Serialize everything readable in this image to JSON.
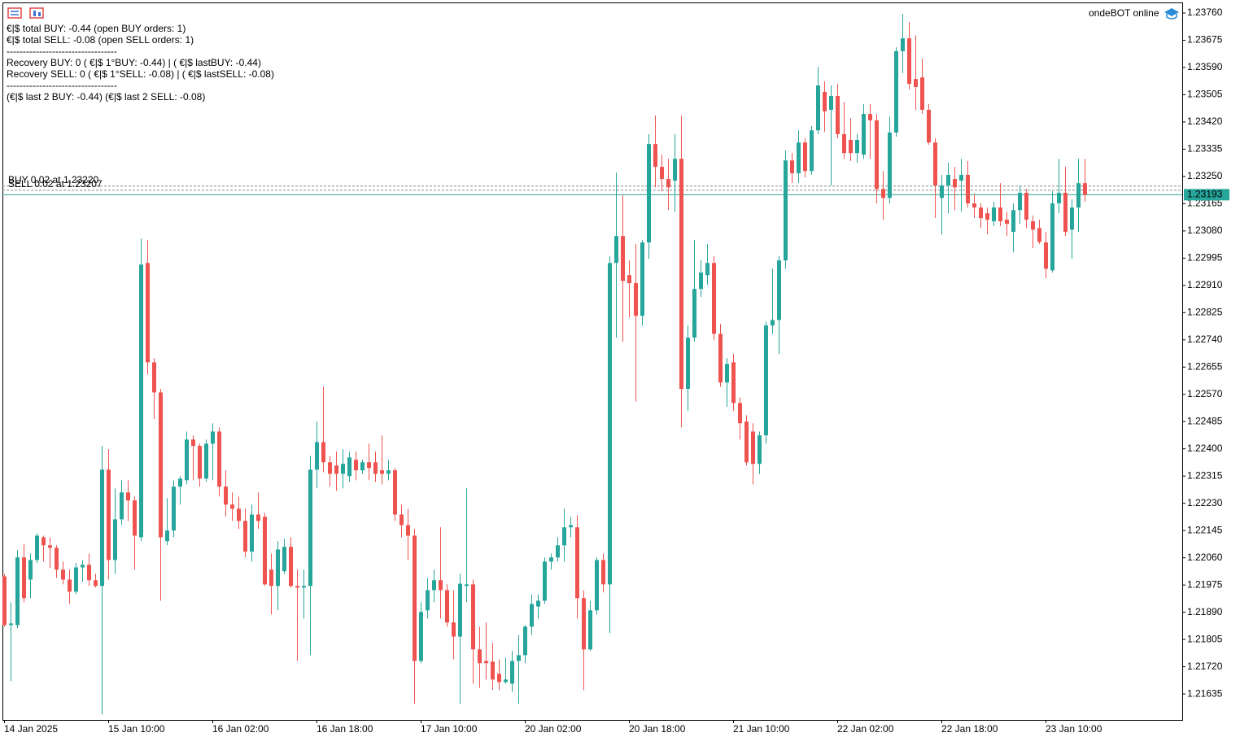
{
  "info_lines": [
    "€|$ total BUY: -0.44 (open BUY orders: 1)",
    "€|$ total SELL: -0.08 (open SELL orders: 1)",
    "----------------------------------",
    "Recovery BUY: 0 ( €|$ 1°BUY: -0.44) | ( €|$ lastBUY: -0.44)",
    "Recovery SELL: 0 ( €|$ 1°SELL: -0.08) | ( €|$ lastSELL: -0.08)",
    "----------------------------------",
    "(€|$ last 2 BUY: -0.44)  (€|$ last 2 SELL: -0.08)"
  ],
  "status": "ondeBOT online",
  "chart_data": {
    "type": "candlestick",
    "up_color": "#26a69a",
    "down_color": "#ef5350",
    "categories": [
      "14 Jan 2025",
      null,
      null,
      null,
      null,
      null,
      null,
      null,
      null,
      null,
      null,
      null,
      null,
      null,
      null,
      null,
      "15 Jan 10:00",
      null,
      null,
      null,
      null,
      null,
      null,
      null,
      null,
      null,
      null,
      null,
      null,
      null,
      null,
      null,
      "16 Jan 02:00",
      null,
      null,
      null,
      null,
      null,
      null,
      null,
      null,
      null,
      null,
      null,
      null,
      null,
      null,
      null,
      "16 Jan 18:00",
      null,
      null,
      null,
      null,
      null,
      null,
      null,
      null,
      null,
      null,
      null,
      null,
      null,
      null,
      null,
      "17 Jan 10:00",
      null,
      null,
      null,
      null,
      null,
      null,
      null,
      null,
      null,
      null,
      null,
      null,
      null,
      null,
      null,
      "20 Jan 02:00",
      null,
      null,
      null,
      null,
      null,
      null,
      null,
      null,
      null,
      null,
      null,
      null,
      null,
      null,
      null,
      "20 Jan 18:00",
      null,
      null,
      null,
      null,
      null,
      null,
      null,
      null,
      null,
      null,
      null,
      null,
      null,
      null,
      null,
      "21 Jan 10:00",
      null,
      null,
      null,
      null,
      null,
      null,
      null,
      null,
      null,
      null,
      null,
      null,
      null,
      null,
      null,
      "22 Jan 02:00",
      null,
      null,
      null,
      null,
      null,
      null,
      null,
      null,
      null,
      null,
      null,
      null,
      null,
      null,
      null,
      "22 Jan 18:00",
      null,
      null,
      null,
      null,
      null,
      null,
      null,
      null,
      null,
      null,
      null,
      null,
      null,
      null,
      null,
      "23 Jan 10:00",
      null,
      null,
      null,
      null,
      null,
      null
    ],
    "open": [
      1.22002,
      1.2185,
      1.2185,
      1.22061,
      1.21992,
      1.22053,
      1.22124,
      1.22099,
      1.22091,
      1.22023,
      1.21992,
      1.21954,
      1.2203,
      1.22038,
      1.2199,
      1.21972,
      1.22335,
      1.22053,
      1.2218,
      1.22264,
      1.22239,
      1.22124,
      1.2298,
      1.2267,
      1.22576,
      1.22112,
      1.22145,
      1.22282,
      1.22302,
      1.22429,
      1.22409,
      1.22307,
      1.22416,
      1.22454,
      1.22282,
      1.22226,
      1.22213,
      1.22175,
      1.22079,
      1.22195,
      1.22188,
      1.22023,
      1.21972,
      1.22018,
      1.22094,
      1.21972,
      1.21967,
      1.21972,
      1.22335,
      1.22421,
      1.22358,
      1.22348,
      1.22322,
      1.22315,
      1.22366,
      1.22333,
      1.22358,
      1.22358,
      1.22333,
      1.22322,
      1.22333,
      1.22195,
      1.22162,
      1.22129,
      1.21738,
      1.21896,
      1.21959,
      1.2199,
      1.21959,
      1.21858,
      1.21814,
      1.21972,
      1.21977,
      1.21774,
      1.21738,
      1.21736,
      1.21698,
      1.21672,
      1.21667,
      1.21738,
      1.21756,
      1.21845,
      1.21908,
      1.21926,
      1.22048,
      1.22061,
      1.22099,
      1.22155,
      1.22155,
      1.21934,
      1.21774,
      1.21896,
      1.22053,
      1.21977,
      1.2298,
      1.23064,
      1.22942,
      1.22917,
      1.22815,
      1.23044,
      1.23351,
      1.2328,
      1.23242,
      1.23237,
      1.23305,
      1.22587,
      1.22747,
      1.22899,
      1.22942,
      1.2298,
      1.22759,
      1.22607,
      1.2267,
      1.22543,
      1.22485,
      1.22454,
      1.22353,
      1.22442,
      1.22785,
      1.22802,
      1.22988,
      1.233,
      1.2326,
      1.23356,
      1.23267,
      1.23394,
      1.23514,
      1.23458,
      1.23501,
      1.23382,
      1.23364,
      1.23323,
      1.23318,
      1.23445,
      1.23425,
      1.23211,
      1.23183,
      1.23387,
      1.23641,
      1.23681,
      1.23554,
      1.23559,
      1.23458,
      1.23356,
      1.23183,
      1.23222,
      1.23242,
      1.23237,
      1.23255,
      1.23166,
      1.23153,
      1.23135,
      1.2311,
      1.23153,
      1.23115,
      1.23077,
      1.23145,
      1.23199,
      1.2311,
      1.23089,
      1.23044,
      1.22957,
      1.23166,
      1.23199,
      1.23084,
      1.23153,
      1.23229
    ],
    "high": [
      1.2201,
      1.21921,
      1.22084,
      1.22104,
      1.22073,
      1.22137,
      1.22129,
      1.22124,
      1.22099,
      1.22048,
      1.22023,
      1.22043,
      1.22053,
      1.22073,
      1.2201,
      1.22409,
      1.22399,
      1.22277,
      1.22302,
      1.22302,
      1.22251,
      1.23056,
      1.23051,
      1.22683,
      1.22587,
      1.22246,
      1.22302,
      1.22315,
      1.22454,
      1.22442,
      1.22416,
      1.22429,
      1.2248,
      1.22467,
      1.22333,
      1.22264,
      1.22251,
      1.22213,
      1.22226,
      1.22264,
      1.222,
      1.22073,
      1.22112,
      1.22119,
      1.22124,
      1.22023,
      1.22023,
      1.22378,
      1.22485,
      1.22594,
      1.22378,
      1.22391,
      1.22399,
      1.22391,
      1.22391,
      1.22366,
      1.22416,
      1.22391,
      1.22442,
      1.22366,
      1.2234,
      1.22226,
      1.22213,
      1.2215,
      1.21921,
      1.21997,
      1.22023,
      1.22155,
      1.21977,
      1.21959,
      1.2201,
      1.22277,
      1.21992,
      1.21845,
      1.21858,
      1.21794,
      1.21743,
      1.21748,
      1.21769,
      1.21819,
      1.2185,
      1.21946,
      1.21946,
      1.22061,
      1.22073,
      1.22124,
      1.22213,
      1.22188,
      1.22193,
      1.21959,
      1.21926,
      1.22061,
      1.22073,
      1.23001,
      1.23262,
      1.23191,
      1.22988,
      1.23039,
      1.23051,
      1.23382,
      1.2344,
      1.23318,
      1.23305,
      1.23382,
      1.2344,
      1.22785,
      1.23051,
      1.22988,
      1.23039,
      1.23001,
      1.2279,
      1.22683,
      1.22696,
      1.22561,
      1.22505,
      1.2248,
      1.22454,
      1.22797,
      1.22962,
      1.23001,
      1.23331,
      1.23323,
      1.23394,
      1.23369,
      1.23407,
      1.23592,
      1.23547,
      1.23534,
      1.23539,
      1.23483,
      1.23432,
      1.23382,
      1.23476,
      1.23476,
      1.23445,
      1.23267,
      1.23437,
      1.23653,
      1.23757,
      1.23732,
      1.23691,
      1.23618,
      1.23476,
      1.23369,
      1.23255,
      1.23293,
      1.2328,
      1.23305,
      1.23298,
      1.23196,
      1.23166,
      1.23153,
      1.23171,
      1.23229,
      1.2314,
      1.23166,
      1.23222,
      1.23211,
      1.23128,
      1.23115,
      1.23077,
      1.23204,
      1.23305,
      1.2328,
      1.23178,
      1.23305,
      1.23305
    ],
    "low": [
      1.21845,
      1.21675,
      1.2184,
      1.21921,
      1.21934,
      1.22043,
      1.22048,
      1.22028,
      1.21997,
      1.21977,
      1.21916,
      1.21946,
      1.21985,
      1.21972,
      1.21967,
      1.21571,
      1.21992,
      1.2201,
      1.22162,
      1.22175,
      1.22023,
      1.22112,
      1.22632,
      1.22493,
      1.21926,
      1.22099,
      1.22124,
      1.22226,
      1.22289,
      1.22302,
      1.22282,
      1.22297,
      1.22302,
      1.22251,
      1.22188,
      1.22175,
      1.2215,
      1.22061,
      1.22048,
      1.2215,
      1.21972,
      1.21883,
      1.21896,
      1.2201,
      1.21967,
      1.21738,
      1.2187,
      1.21756,
      1.22277,
      1.22327,
      1.22282,
      1.22269,
      1.22277,
      1.22297,
      1.22302,
      1.22322,
      1.22302,
      1.22297,
      1.22289,
      1.22302,
      1.22175,
      1.22124,
      1.22053,
      1.21604,
      1.21731,
      1.2187,
      1.21921,
      1.2187,
      1.21845,
      1.21743,
      1.21604,
      1.21921,
      1.21667,
      1.21654,
      1.2168,
      1.21647,
      1.21647,
      1.21667,
      1.21642,
      1.21604,
      1.21731,
      1.21819,
      1.2187,
      1.21916,
      1.22023,
      1.22048,
      1.22048,
      1.22124,
      1.2187,
      1.21647,
      1.21769,
      1.21883,
      1.21952,
      1.21825,
      1.22747,
      1.22734,
      1.2281,
      1.22548,
      1.22785,
      1.22993,
      1.23216,
      1.23204,
      1.23145,
      1.2314,
      1.22467,
      1.22518,
      1.22734,
      1.22874,
      1.22912,
      1.22739,
      1.22594,
      1.22531,
      1.22518,
      1.22429,
      1.22348,
      1.22289,
      1.22322,
      1.22416,
      1.22759,
      1.22696,
      1.22962,
      1.23229,
      1.23229,
      1.23247,
      1.23255,
      1.23382,
      1.23389,
      1.23222,
      1.23369,
      1.23305,
      1.23298,
      1.23293,
      1.23305,
      1.23305,
      1.23166,
      1.23115,
      1.23166,
      1.23374,
      1.23572,
      1.23521,
      1.23458,
      1.23445,
      1.23349,
      1.2312,
      1.23069,
      1.23135,
      1.23145,
      1.2314,
      1.23153,
      1.2312,
      1.23089,
      1.23069,
      1.23095,
      1.23095,
      1.23064,
      1.23013,
      1.23102,
      1.23089,
      1.23026,
      1.23039,
      1.22932,
      1.2295,
      1.23135,
      1.23064,
      1.22993,
      1.23077,
      1.23171
    ],
    "close": [
      1.2185,
      1.21855,
      1.22061,
      1.21934,
      1.22053,
      1.22129,
      1.22099,
      1.22091,
      1.22023,
      1.21992,
      1.21954,
      1.2203,
      1.22038,
      1.2199,
      1.21972,
      1.22335,
      1.22053,
      1.2218,
      1.22264,
      1.22239,
      1.22129,
      1.22975,
      1.2267,
      1.22576,
      1.22124,
      1.22145,
      1.22282,
      1.22307,
      1.22429,
      1.22409,
      1.22307,
      1.22416,
      1.22454,
      1.22282,
      1.22226,
      1.22213,
      1.22175,
      1.22079,
      1.22195,
      1.22175,
      1.21977,
      1.21972,
      1.22086,
      1.22094,
      1.21972,
      1.21967,
      1.21972,
      1.22335,
      1.22421,
      1.22358,
      1.22322,
      1.22322,
      1.22353,
      1.22373,
      1.22333,
      1.22358,
      1.2234,
      1.22322,
      1.22322,
      1.22333,
      1.22195,
      1.22162,
      1.22129,
      1.21738,
      1.21891,
      1.21959,
      1.2199,
      1.21959,
      1.21858,
      1.21814,
      1.21979,
      1.21977,
      1.21774,
      1.21731,
      1.21731,
      1.2168,
      1.21672,
      1.2168,
      1.21738,
      1.21756,
      1.21845,
      1.21916,
      1.21926,
      1.22048,
      1.22061,
      1.22099,
      1.22155,
      1.22162,
      1.21934,
      1.21774,
      1.21896,
      1.22053,
      1.21977,
      1.2298,
      1.23064,
      1.22924,
      1.22917,
      1.22815,
      1.23044,
      1.23351,
      1.2328,
      1.23242,
      1.23216,
      1.23305,
      1.22587,
      1.22747,
      1.22899,
      1.2295,
      1.2298,
      1.22759,
      1.22607,
      1.22665,
      1.22543,
      1.2248,
      1.22358,
      1.22353,
      1.22442,
      1.22785,
      1.22802,
      1.22988,
      1.233,
      1.2326,
      1.23356,
      1.23267,
      1.23394,
      1.23534,
      1.23453,
      1.23501,
      1.23382,
      1.23323,
      1.23323,
      1.23364,
      1.23445,
      1.23425,
      1.23211,
      1.23183,
      1.23387,
      1.23641,
      1.23681,
      1.23539,
      1.23529,
      1.23458,
      1.23356,
      1.23222,
      1.23222,
      1.23255,
      1.23216,
      1.23255,
      1.23166,
      1.23153,
      1.2312,
      1.23115,
      1.23153,
      1.2311,
      1.23102,
      1.23145,
      1.23199,
      1.23115,
      1.23084,
      1.23046,
      1.22962,
      1.23166,
      1.23199,
      1.23077,
      1.23153,
      1.23229,
      1.23193
    ],
    "ylim": [
      1.21554,
      1.23793
    ],
    "yticks": [
      {
        "value": 1.2376,
        "label": "1.23760"
      },
      1.23675,
      {
        "value": 1.2359,
        "label": "1.23590"
      },
      1.23505,
      {
        "value": 1.2342,
        "label": "1.23420"
      },
      1.23335,
      {
        "value": 1.2325,
        "label": "1.23250"
      },
      1.23165,
      {
        "value": 1.2308,
        "label": "1.23080"
      },
      1.22995,
      {
        "value": 1.2291,
        "label": "1.22910"
      },
      1.22825,
      {
        "value": 1.2274,
        "label": "1.22740"
      },
      1.22655,
      {
        "value": 1.2257,
        "label": "1.22570"
      },
      1.22485,
      {
        "value": 1.224,
        "label": "1.22400"
      },
      1.22315,
      {
        "value": 1.2223,
        "label": "1.22230"
      },
      1.22145,
      {
        "value": 1.2206,
        "label": "1.22060"
      },
      1.21975,
      {
        "value": 1.2189,
        "label": "1.21890"
      },
      1.21805,
      {
        "value": 1.2172,
        "label": "1.21720"
      },
      1.21635
    ],
    "orders": [
      {
        "value": 1.2322,
        "label": "BUY 0.02 at 1.23220"
      },
      {
        "value": 1.23207,
        "label": "SELL 0.02 at 1.23207"
      }
    ],
    "current_price": {
      "value": 1.23193,
      "label": "1.23193"
    }
  }
}
